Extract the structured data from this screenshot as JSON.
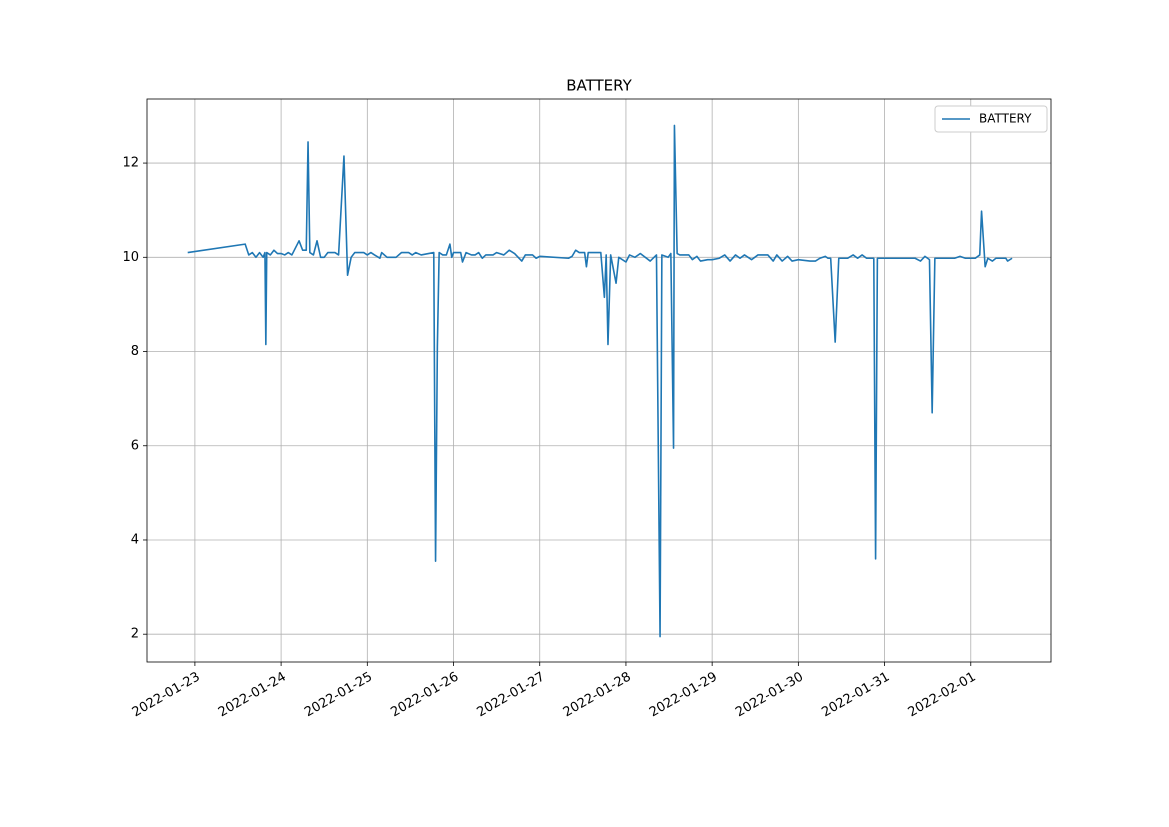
{
  "chart_data": {
    "type": "line",
    "title": "BATTERY",
    "x": [
      "2022-01-22 22:00",
      "2022-01-23 14:00",
      "2022-01-23 15:00",
      "2022-01-23 16:00",
      "2022-01-23 17:00",
      "2022-01-23 18:00",
      "2022-01-23 19:00",
      "2022-01-23 19:30",
      "2022-01-23 19:45",
      "2022-01-23 20:00",
      "2022-01-23 21:00",
      "2022-01-23 22:00",
      "2022-01-23 23:00",
      "2022-01-24 00:00",
      "2022-01-24 01:00",
      "2022-01-24 02:00",
      "2022-01-24 03:00",
      "2022-01-24 05:00",
      "2022-01-24 06:00",
      "2022-01-24 07:00",
      "2022-01-24 07:30",
      "2022-01-24 08:00",
      "2022-01-24 09:00",
      "2022-01-24 10:00",
      "2022-01-24 11:00",
      "2022-01-24 12:00",
      "2022-01-24 13:00",
      "2022-01-24 15:00",
      "2022-01-24 16:00",
      "2022-01-24 17:30",
      "2022-01-24 18:30",
      "2022-01-24 19:30",
      "2022-01-24 20:30",
      "2022-01-24 23:00",
      "2022-01-25 00:00",
      "2022-01-25 01:00",
      "2022-01-25 02:00",
      "2022-01-25 03:30",
      "2022-01-25 04:00",
      "2022-01-25 05:30",
      "2022-01-25 08:00",
      "2022-01-25 09:30",
      "2022-01-25 11:30",
      "2022-01-25 12:30",
      "2022-01-25 13:30",
      "2022-01-25 15:00",
      "2022-01-25 17:00",
      "2022-01-25 18:30",
      "2022-01-25 19:00",
      "2022-01-25 19:30",
      "2022-01-25 20:00",
      "2022-01-25 21:00",
      "2022-01-25 22:00",
      "2022-01-25 23:00",
      "2022-01-25 23:30",
      "2022-01-26 00:00",
      "2022-01-26 02:00",
      "2022-01-26 02:30",
      "2022-01-26 03:30",
      "2022-01-26 05:00",
      "2022-01-26 06:00",
      "2022-01-26 07:00",
      "2022-01-26 08:00",
      "2022-01-26 09:00",
      "2022-01-26 11:00",
      "2022-01-26 12:00",
      "2022-01-26 14:00",
      "2022-01-26 15:30",
      "2022-01-26 17:00",
      "2022-01-26 18:00",
      "2022-01-26 19:00",
      "2022-01-26 20:00",
      "2022-01-26 22:00",
      "2022-01-26 23:00",
      "2022-01-27 00:00",
      "2022-01-27 08:00",
      "2022-01-27 09:00",
      "2022-01-27 10:00",
      "2022-01-27 11:00",
      "2022-01-27 12:30",
      "2022-01-27 13:00",
      "2022-01-27 13:30",
      "2022-01-27 17:00",
      "2022-01-27 18:00",
      "2022-01-27 18:30",
      "2022-01-27 19:00",
      "2022-01-27 19:45",
      "2022-01-27 21:15",
      "2022-01-27 22:00",
      "2022-01-28 00:00",
      "2022-01-28 01:00",
      "2022-01-28 02:30",
      "2022-01-28 04:00",
      "2022-01-28 06:45",
      "2022-01-28 08:30",
      "2022-01-28 09:30",
      "2022-01-28 10:00",
      "2022-01-28 11:45",
      "2022-01-28 12:30",
      "2022-01-28 13:15",
      "2022-01-28 13:30",
      "2022-01-28 14:15",
      "2022-01-28 15:00",
      "2022-01-28 17:30",
      "2022-01-28 18:30",
      "2022-01-28 19:45",
      "2022-01-28 20:45",
      "2022-01-28 22:45",
      "2022-01-29 00:00",
      "2022-01-29 02:00",
      "2022-01-29 03:30",
      "2022-01-29 05:00",
      "2022-01-29 06:30",
      "2022-01-29 07:45",
      "2022-01-29 09:00",
      "2022-01-29 11:00",
      "2022-01-29 12:45",
      "2022-01-29 15:30",
      "2022-01-29 17:00",
      "2022-01-29 18:00",
      "2022-01-29 19:30",
      "2022-01-29 21:00",
      "2022-01-29 22:15",
      "2022-01-30 00:00",
      "2022-01-30 03:15",
      "2022-01-30 04:45",
      "2022-01-30 06:00",
      "2022-01-30 07:30",
      "2022-01-30 08:15",
      "2022-01-30 09:00",
      "2022-01-30 10:15",
      "2022-01-30 11:15",
      "2022-01-30 13:45",
      "2022-01-30 15:15",
      "2022-01-30 16:30",
      "2022-01-30 17:45",
      "2022-01-30 19:00",
      "2022-01-30 21:00",
      "2022-01-30 21:30",
      "2022-01-30 22:00",
      "2022-01-31 00:00",
      "2022-01-31 08:30",
      "2022-01-31 10:00",
      "2022-01-31 11:15",
      "2022-01-31 12:30",
      "2022-01-31 13:15",
      "2022-01-31 14:00",
      "2022-01-31 19:30",
      "2022-01-31 21:00",
      "2022-01-31 22:30",
      "2022-02-01 01:15",
      "2022-02-01 02:30",
      "2022-02-01 03:00",
      "2022-02-01 04:00",
      "2022-02-01 04:45",
      "2022-02-01 06:00",
      "2022-02-01 07:00",
      "2022-02-01 09:45",
      "2022-02-01 10:15",
      "2022-02-01 11:30"
    ],
    "series": [
      {
        "name": "BATTERY",
        "color": "#1f77b4",
        "values": [
          10.1,
          10.28,
          10.05,
          10.1,
          10.0,
          10.1,
          10.0,
          10.1,
          8.15,
          10.1,
          10.05,
          10.15,
          10.08,
          10.08,
          10.05,
          10.1,
          10.05,
          10.35,
          10.15,
          10.15,
          12.45,
          10.1,
          10.05,
          10.35,
          10.0,
          10.0,
          10.1,
          10.1,
          10.05,
          12.15,
          9.62,
          10.0,
          10.1,
          10.1,
          10.05,
          10.1,
          10.05,
          9.98,
          10.1,
          10.0,
          10.0,
          10.1,
          10.1,
          10.05,
          10.1,
          10.05,
          10.08,
          10.1,
          3.55,
          8.1,
          10.1,
          10.05,
          10.05,
          10.28,
          10.0,
          10.1,
          10.1,
          9.9,
          10.1,
          10.05,
          10.05,
          10.1,
          9.98,
          10.05,
          10.05,
          10.1,
          10.05,
          10.15,
          10.08,
          10.0,
          9.92,
          10.05,
          10.05,
          9.98,
          10.02,
          9.98,
          10.02,
          10.15,
          10.1,
          10.1,
          9.8,
          10.1,
          10.1,
          9.15,
          10.05,
          8.15,
          10.05,
          9.45,
          10.0,
          9.9,
          10.05,
          10.0,
          10.08,
          9.92,
          10.05,
          1.95,
          10.05,
          10.0,
          10.08,
          5.95,
          12.8,
          10.08,
          10.05,
          10.05,
          9.95,
          10.02,
          9.92,
          9.95,
          9.95,
          9.98,
          10.05,
          9.92,
          10.05,
          9.98,
          10.05,
          9.95,
          10.05,
          10.05,
          9.92,
          10.05,
          9.92,
          10.02,
          9.92,
          9.95,
          9.92,
          9.92,
          9.98,
          10.02,
          9.98,
          9.98,
          8.2,
          9.98,
          9.98,
          10.05,
          9.98,
          10.05,
          9.98,
          9.98,
          3.6,
          9.98,
          9.98,
          9.98,
          9.92,
          10.02,
          9.95,
          6.7,
          9.98,
          9.98,
          10.02,
          9.98,
          9.98,
          10.05,
          10.98,
          9.8,
          9.98,
          9.92,
          9.98,
          9.98,
          9.92,
          9.98
        ]
      }
    ],
    "xlim": [
      "2022-01-22 10:40",
      "2022-02-01 22:20"
    ],
    "xticks": [
      "2022-01-23",
      "2022-01-24",
      "2022-01-25",
      "2022-01-26",
      "2022-01-27",
      "2022-01-28",
      "2022-01-29",
      "2022-01-30",
      "2022-01-31",
      "2022-02-01"
    ],
    "ylim": [
      1.41,
      13.36
    ],
    "yticks": [
      2,
      4,
      6,
      8,
      10,
      12
    ],
    "grid": true,
    "legend": "upper right"
  }
}
